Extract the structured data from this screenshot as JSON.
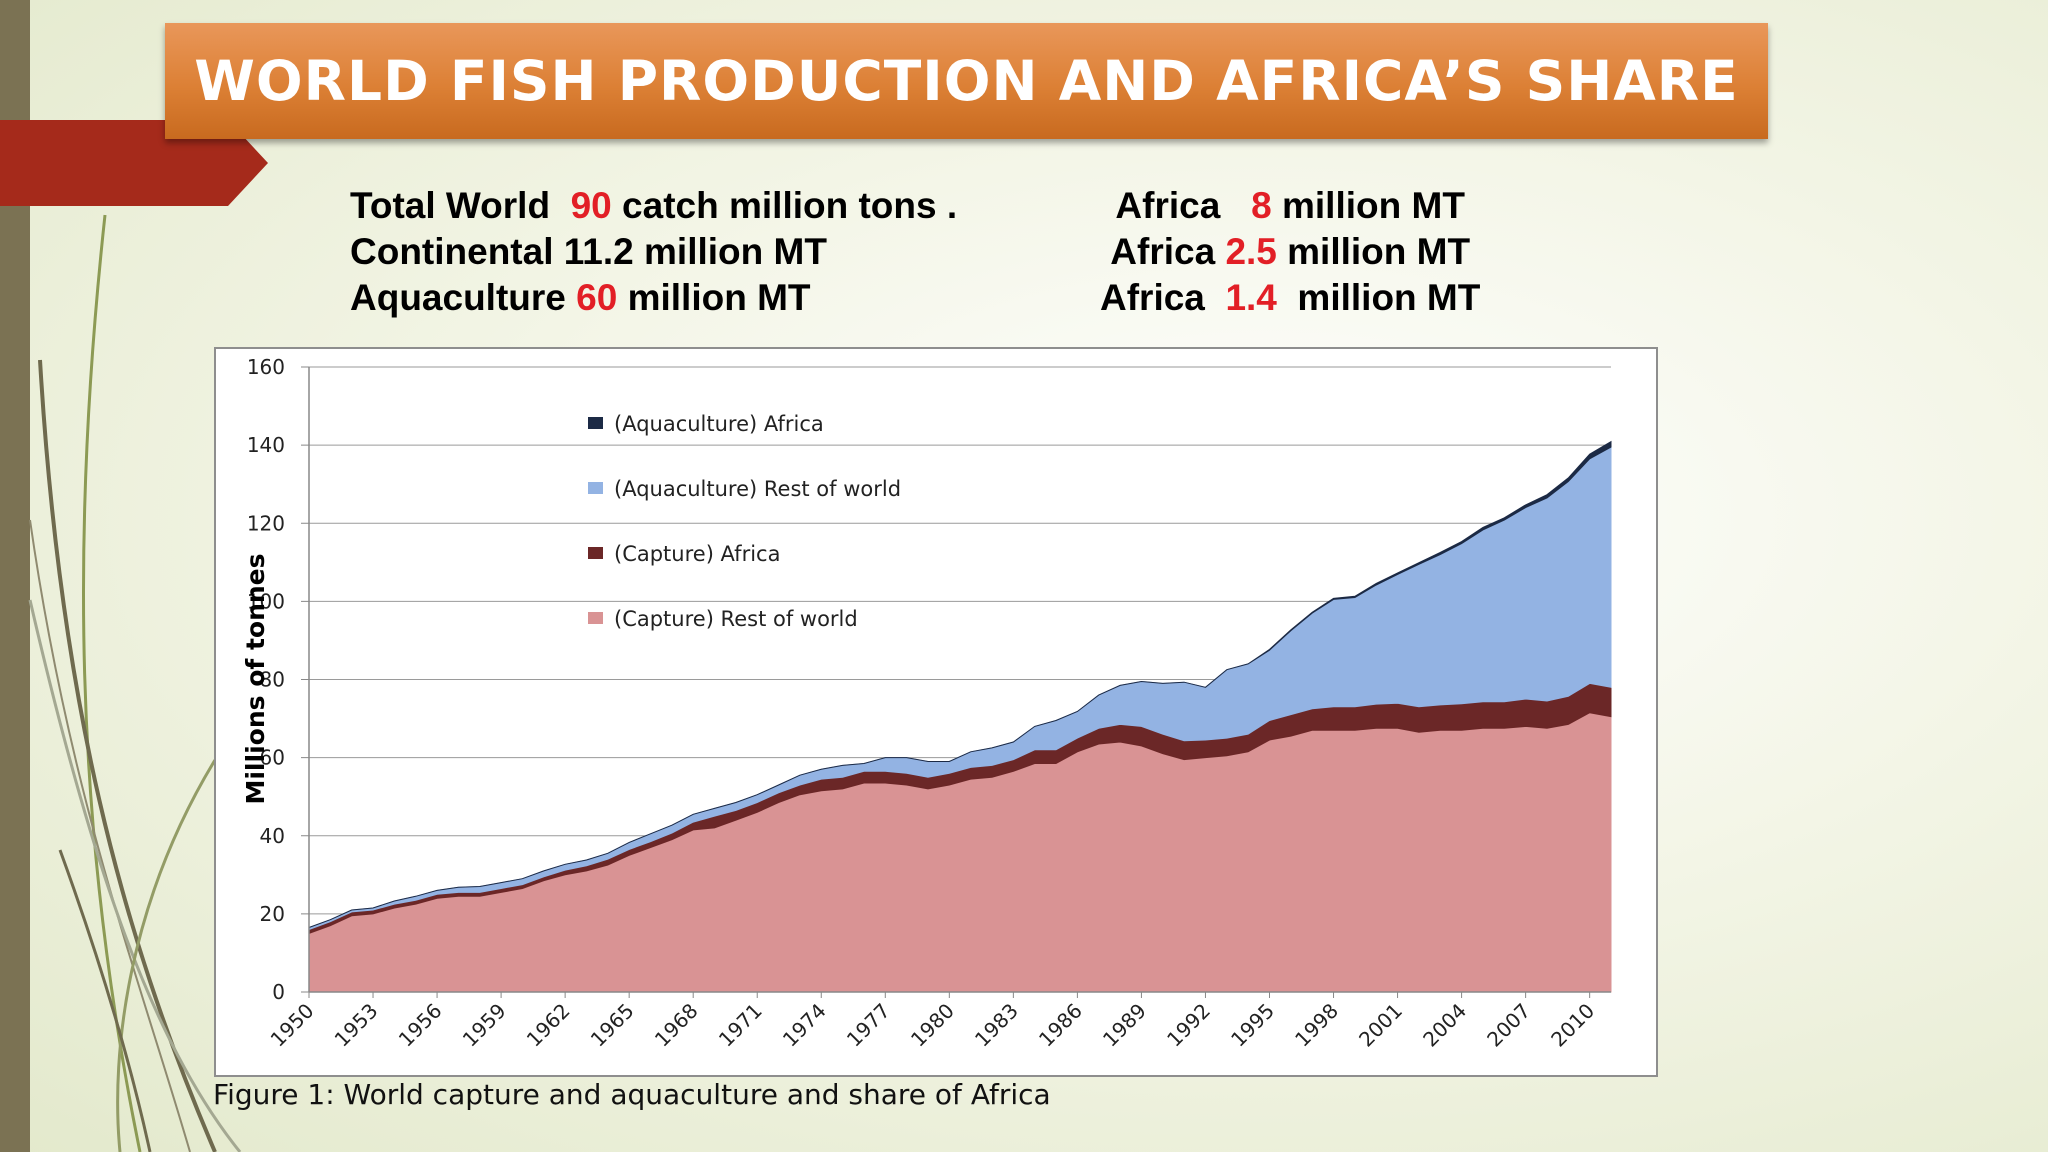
{
  "slide": {
    "title": "WORLD FISH PRODUCTION AND AFRICA’S SHARE",
    "caption": "Figure 1: World capture and aquaculture and share of Africa"
  },
  "stats": {
    "left": [
      {
        "pre": "Total World  ",
        "num": "90",
        "post": " catch million tons ."
      },
      {
        "pre": "Continental 11.2 million MT",
        "num": "",
        "post": ""
      },
      {
        "pre": "Aquaculture ",
        "num": "60",
        "post": " million MT"
      }
    ],
    "right": [
      {
        "pre": "Africa   ",
        "num": "8",
        "post": " million MT"
      },
      {
        "pre": "Africa ",
        "num": "2.5",
        "post": " million MT"
      },
      {
        "pre": "Africa  ",
        "num": "1.4",
        "post": "  million MT"
      }
    ]
  },
  "colors": {
    "capture_row": "#d99394",
    "capture_africa": "#6b2727",
    "aquaculture_row": "#93b3e3",
    "aquaculture_africa": "#1c2a45",
    "red_number": "#e21f26",
    "title_banner": "#dc8035"
  },
  "chart_data": {
    "type": "area",
    "stacked": true,
    "ylabel": "Millions of tonnes",
    "xlabel": "",
    "ylim": [
      0,
      160
    ],
    "yticks": [
      0,
      20,
      40,
      60,
      80,
      100,
      120,
      140,
      160
    ],
    "xticks": [
      "1950",
      "1953",
      "1956",
      "1959",
      "1962",
      "1965",
      "1968",
      "1971",
      "1974",
      "1977",
      "1980",
      "1983",
      "1986",
      "1989",
      "1992",
      "1995",
      "1998",
      "2001",
      "2004",
      "2007",
      "2010"
    ],
    "x": [
      1950,
      1951,
      1952,
      1953,
      1954,
      1955,
      1956,
      1957,
      1958,
      1959,
      1960,
      1961,
      1962,
      1963,
      1964,
      1965,
      1966,
      1967,
      1968,
      1969,
      1970,
      1971,
      1972,
      1973,
      1974,
      1975,
      1976,
      1977,
      1978,
      1979,
      1980,
      1981,
      1982,
      1983,
      1984,
      1985,
      1986,
      1987,
      1988,
      1989,
      1990,
      1991,
      1992,
      1993,
      1994,
      1995,
      1996,
      1997,
      1998,
      1999,
      2000,
      2001,
      2002,
      2003,
      2004,
      2005,
      2006,
      2007,
      2008,
      2009,
      2010,
      2011
    ],
    "grid": true,
    "legend_position": "top-left",
    "series": [
      {
        "name": "(Capture) Rest of world",
        "color": "#d99394",
        "values": [
          15,
          17,
          19.5,
          20,
          21.5,
          22.5,
          24,
          24.5,
          24.5,
          25.5,
          26.5,
          28.5,
          30,
          31,
          32.5,
          35,
          37,
          39,
          41.5,
          42,
          44,
          46,
          48.5,
          50.5,
          51.5,
          52,
          53.5,
          53.5,
          53,
          52,
          53,
          54.5,
          55,
          56.5,
          58.5,
          58.5,
          61.5,
          63.5,
          64,
          63,
          61,
          59.5,
          60,
          60.5,
          61.5,
          64.5,
          65.5,
          67,
          67,
          67,
          67.5,
          67.5,
          66.5,
          67,
          67,
          67.5,
          67.5,
          68,
          67.5,
          68.5,
          71.5,
          70.5
        ]
      },
      {
        "name": "(Capture) Africa",
        "color": "#6b2727",
        "values": [
          1,
          1,
          1,
          1,
          1,
          1,
          1,
          1,
          1,
          1,
          1,
          1,
          1.2,
          1.3,
          1.5,
          1.5,
          1.5,
          1.7,
          2,
          3,
          2.5,
          2.5,
          2.5,
          2.5,
          3,
          3,
          3,
          3,
          3,
          3,
          3,
          3,
          3,
          3,
          3.5,
          3.5,
          3.5,
          4,
          4.5,
          5,
          5,
          4.8,
          4.5,
          4.5,
          4.5,
          5,
          5.5,
          5.5,
          6,
          6,
          6.2,
          6.4,
          6.5,
          6.5,
          6.8,
          6.8,
          6.8,
          7,
          7,
          7.2,
          7.5,
          7.5
        ]
      },
      {
        "name": "(Aquaculture) Rest of world",
        "color": "#93b3e3",
        "values": [
          0.5,
          0.5,
          0.5,
          0.5,
          0.8,
          1,
          1,
          1.3,
          1.5,
          1.5,
          1.5,
          1.5,
          1.5,
          1.5,
          1.5,
          1.8,
          2,
          2,
          2,
          2,
          2,
          2,
          2,
          2.5,
          2.5,
          3,
          2,
          3.5,
          4,
          4,
          3,
          4,
          4.5,
          4.5,
          6,
          7.5,
          6.8,
          8.5,
          10,
          11.5,
          13,
          15,
          13.5,
          17.5,
          18,
          18,
          21.5,
          24.5,
          27.5,
          28,
          30.5,
          33,
          36.5,
          38.5,
          41,
          44,
          46.5,
          49,
          52,
          55,
          57.5,
          61.5
        ]
      },
      {
        "name": "(Aquaculture) Africa",
        "color": "#1c2a45",
        "values": [
          0,
          0,
          0,
          0,
          0,
          0,
          0,
          0,
          0,
          0,
          0,
          0,
          0,
          0,
          0,
          0,
          0,
          0,
          0,
          0,
          0,
          0,
          0,
          0,
          0,
          0,
          0,
          0,
          0,
          0,
          0,
          0,
          0,
          0,
          0,
          0,
          0,
          0,
          0,
          0,
          0,
          0,
          0,
          0,
          0,
          0.2,
          0.2,
          0.2,
          0.3,
          0.3,
          0.4,
          0.4,
          0.4,
          0.5,
          0.5,
          0.6,
          0.6,
          0.7,
          0.8,
          0.9,
          1.2,
          1.4
        ]
      }
    ]
  }
}
